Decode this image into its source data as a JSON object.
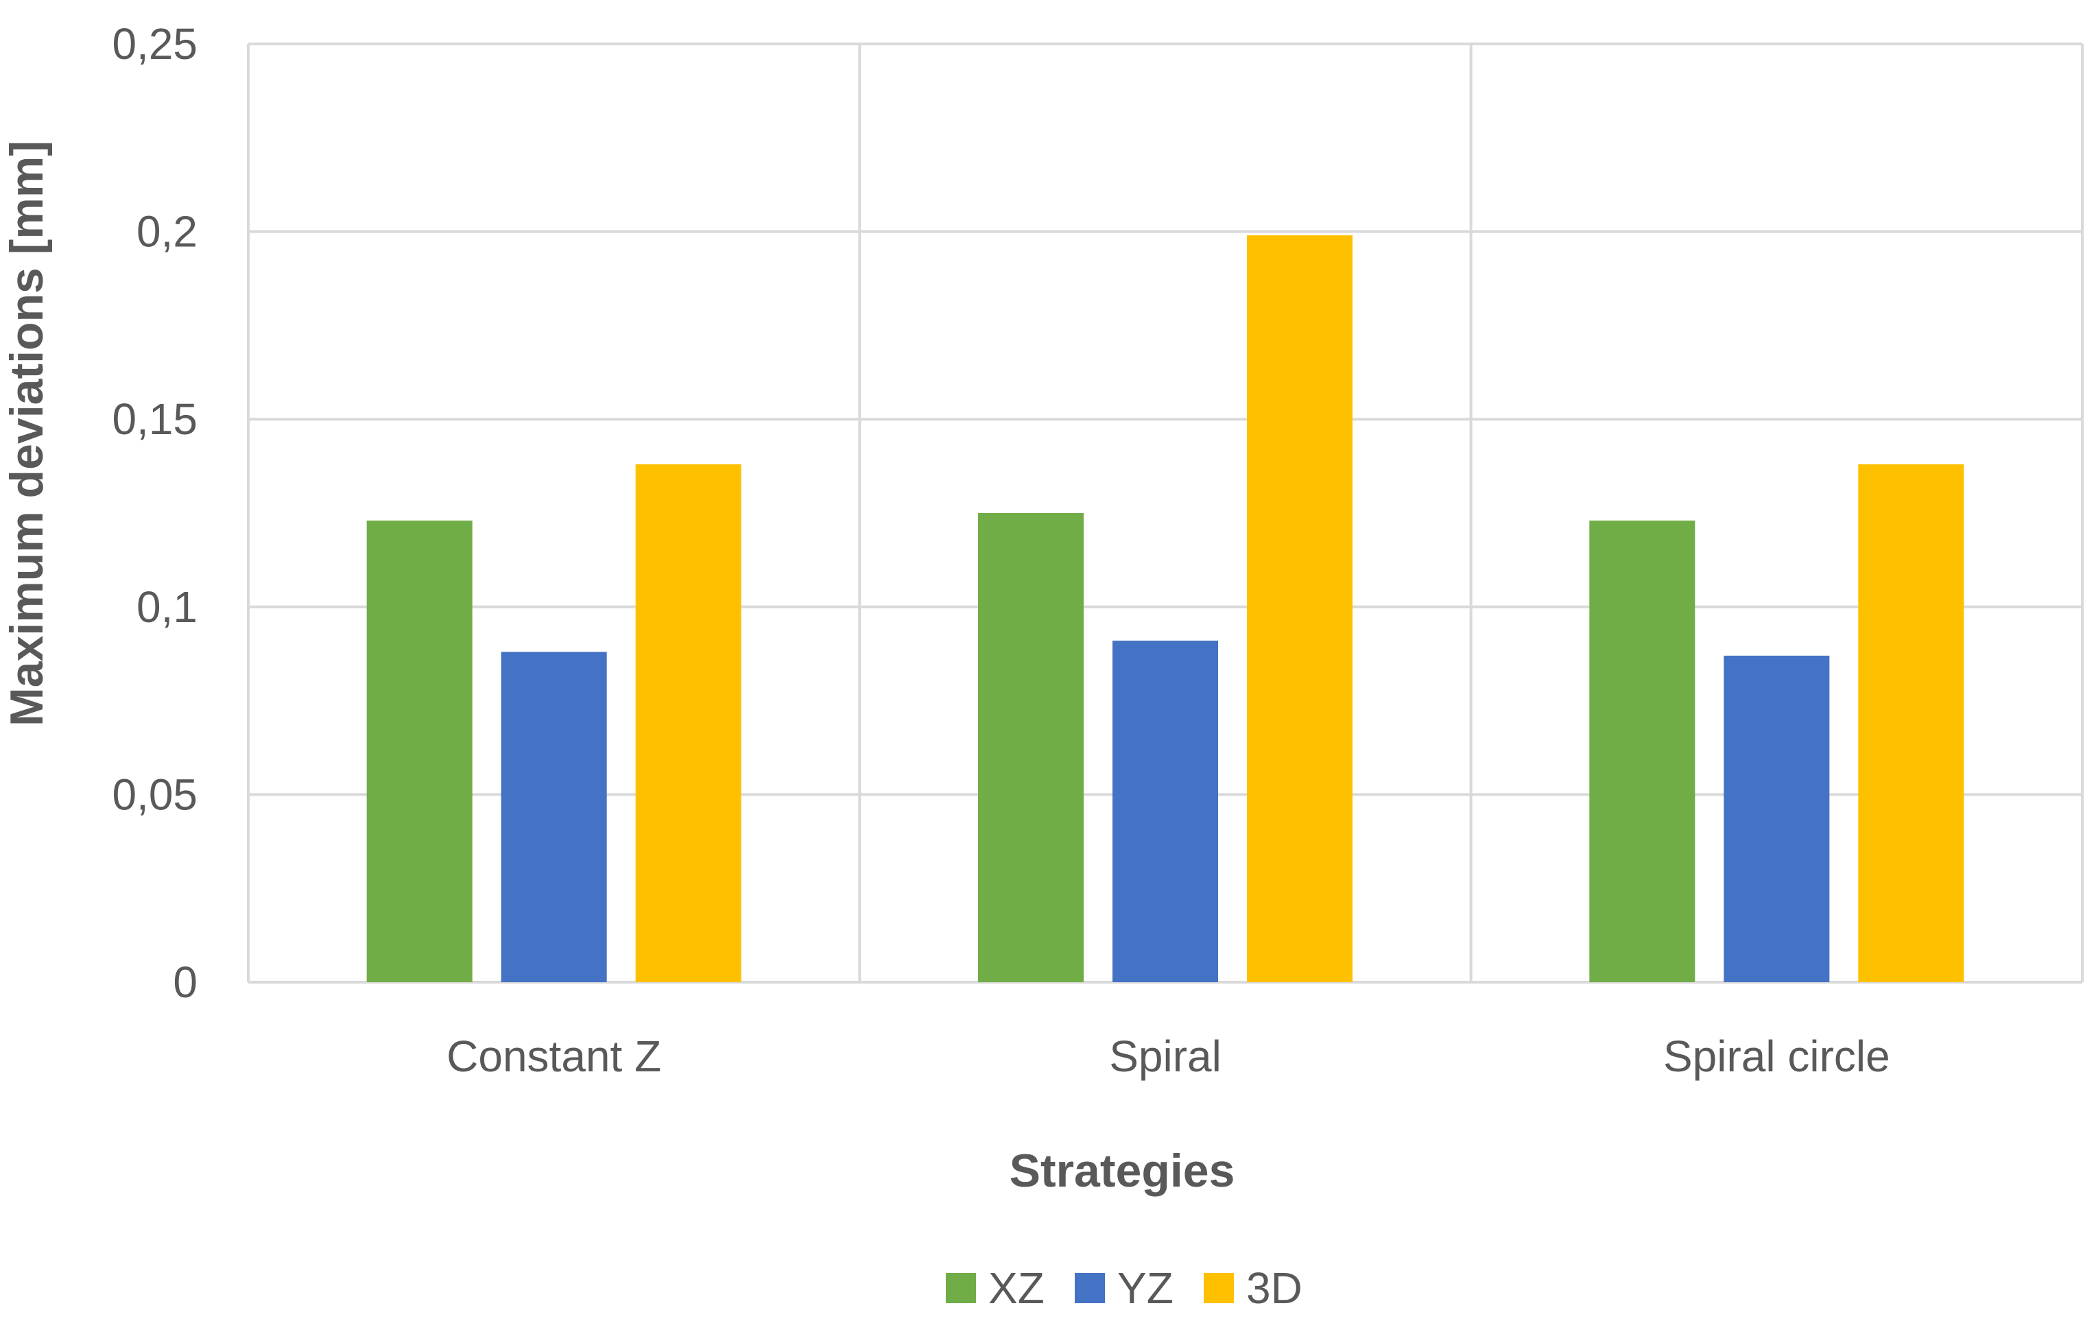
{
  "chart_data": {
    "type": "bar",
    "categories": [
      "Constant Z",
      "Spiral",
      "Spiral circle"
    ],
    "series": [
      {
        "name": "XZ",
        "color": "#70ad47",
        "values": [
          0.123,
          0.125,
          0.123
        ]
      },
      {
        "name": "YZ",
        "color": "#4472c4",
        "values": [
          0.088,
          0.091,
          0.087
        ]
      },
      {
        "name": "3D",
        "color": "#ffc000",
        "values": [
          0.138,
          0.199,
          0.138
        ]
      }
    ],
    "xlabel": "Strategies",
    "ylabel": "Maximum deviations [mm]",
    "ylim": [
      0,
      0.25
    ],
    "yticks": [
      "0",
      "0,05",
      "0,1",
      "0,15",
      "0,2",
      "0,25"
    ],
    "grid": true,
    "legend_position": "bottom"
  }
}
